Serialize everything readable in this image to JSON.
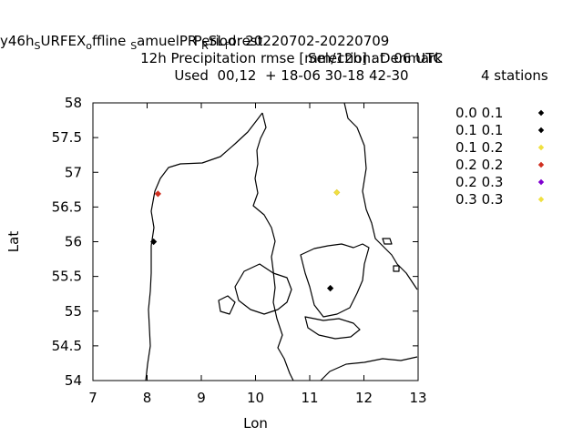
{
  "header": {
    "title_part1_a": "y46h",
    "title_part1_sub1": "S",
    "title_part1_b": "URFEX",
    "title_part1_sub2": "o",
    "title_part1_c": "ffline",
    "title_part1_sub3": "S",
    "title_part1_d": "amuelPR",
    "title_part1_sub4": "R",
    "title_part1_e": "SL",
    "title_part1_sub5": "f",
    "title_part1_f": "orest",
    "selection": "Selection: Denmark",
    "stations": "4 stations",
    "period": "Period: 20220702-20220709",
    "subtitle": "12h Precipitation rmse [mm/12h] at  06 UTC",
    "used": "Used  00,12  + 18-06 30-18 42-30"
  },
  "chart_data": {
    "type": "scatter",
    "xlabel": "Lon",
    "ylabel": "Lat",
    "xlim": [
      7,
      13
    ],
    "ylim": [
      54,
      58
    ],
    "xticks": [
      "7",
      "8",
      "9",
      "10",
      "11",
      "12",
      "13"
    ],
    "yticks": [
      "54",
      "54.5",
      "55",
      "55.5",
      "56",
      "56.5",
      "57",
      "57.5",
      "58"
    ],
    "legend_position": "right",
    "series": [
      {
        "name": "0.0 0.1",
        "color": "#000000",
        "points": []
      },
      {
        "name": "0.1 0.1",
        "color": "#000000",
        "points": [
          [
            8.12,
            56.0
          ],
          [
            11.38,
            55.33
          ]
        ]
      },
      {
        "name": "0.1 0.2",
        "color": "#f0e040",
        "points": [
          [
            11.5,
            56.71
          ]
        ]
      },
      {
        "name": "0.2 0.2",
        "color": "#d03020",
        "points": [
          [
            8.2,
            56.69
          ]
        ]
      },
      {
        "name": "0.2 0.3",
        "color": "#8000d0",
        "points": []
      },
      {
        "name": "0.3 0.3",
        "color": "#f0e040",
        "points": []
      }
    ]
  }
}
